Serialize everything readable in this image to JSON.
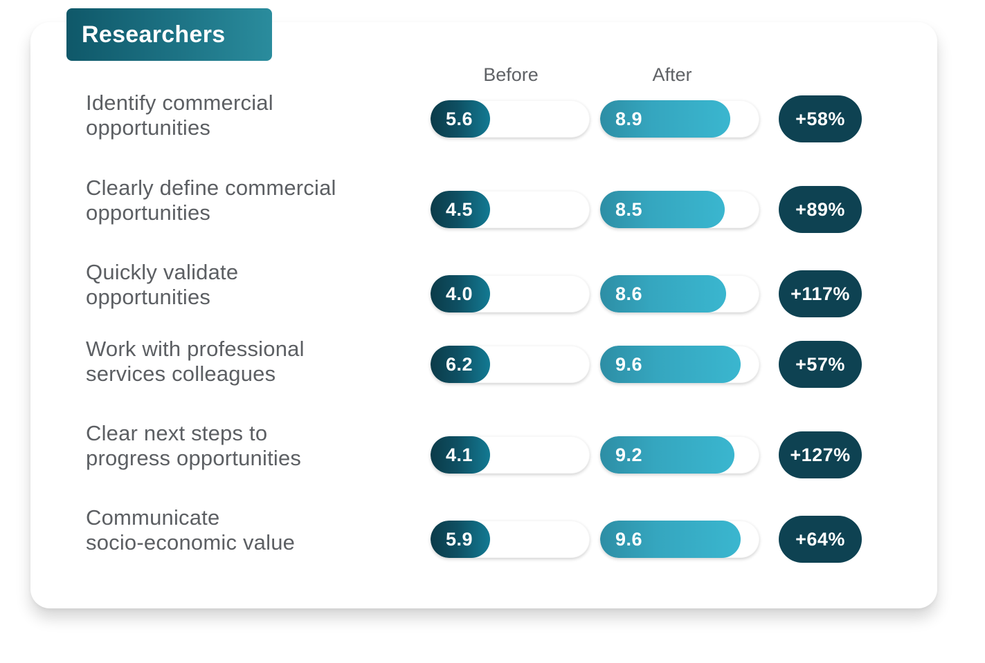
{
  "panel": {
    "title": "Researchers",
    "before_label": "Before",
    "after_label": "After"
  },
  "colors": {
    "before_fill": "#0e4f62",
    "after_fill": "#35a6bf",
    "delta_badge": "#0e4252",
    "title_tab": "#1d7385"
  },
  "chart_data": {
    "type": "bar",
    "title": "Researchers",
    "scale_max": 10,
    "categories": [
      [
        "Identify commercial",
        "opportunities"
      ],
      [
        "Clearly define commercial",
        "opportunities"
      ],
      [
        "Quickly validate",
        "opportunities"
      ],
      [
        "Work with professional",
        "services colleagues"
      ],
      [
        "Clear next steps to",
        "progress opportunities"
      ],
      [
        "Communicate",
        "socio-economic value"
      ]
    ],
    "series": [
      {
        "name": "Before",
        "values": [
          5.6,
          4.5,
          4.0,
          6.2,
          4.1,
          5.9
        ],
        "labels": [
          "5.6",
          "4.5",
          "4.0",
          "6.2",
          "4.1",
          "5.9"
        ]
      },
      {
        "name": "After",
        "values": [
          8.9,
          8.5,
          8.6,
          9.6,
          9.2,
          9.6
        ],
        "labels": [
          "8.9",
          "8.5",
          "8.6",
          "9.6",
          "9.2",
          "9.6"
        ]
      }
    ],
    "change": [
      "+58%",
      "+89%",
      "+117%",
      "+57%",
      "+127%",
      "+64%"
    ]
  }
}
